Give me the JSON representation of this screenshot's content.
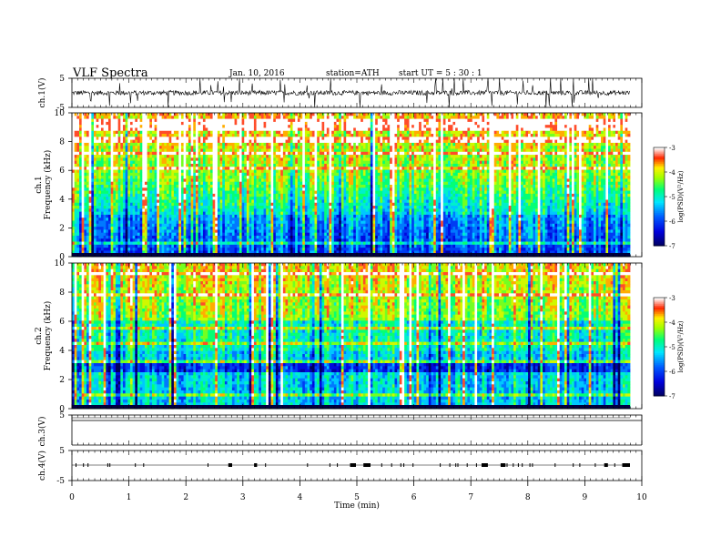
{
  "header": {
    "title": "VLF Spectra",
    "date": "Jan. 10, 2016",
    "station": "station=ATH",
    "start": "start  UT =   5 : 30 : 1"
  },
  "chart_data": [
    {
      "type": "line",
      "panel": "ch1-waveform",
      "ylabel": "ch.1(V)",
      "ylim": [
        -5,
        5
      ],
      "yticks": [
        "5",
        "-5"
      ],
      "xlim": [
        0,
        10
      ],
      "baseline": 0.0,
      "note": "dense noisy waveform with frequent spikes"
    },
    {
      "type": "heatmap",
      "panel": "ch1-spectrogram",
      "ylabel": "ch.1\nFrequency (kHz)",
      "ylim": [
        0,
        10
      ],
      "yticks": [
        "0",
        "2",
        "4",
        "6",
        "8",
        "10"
      ],
      "xlim": [
        0,
        9.8
      ],
      "colorbar": {
        "label": "log(PSD)(V²/Hz)",
        "range": [
          -7,
          -3
        ],
        "ticks": [
          "-3",
          "-4",
          "-5",
          "-6",
          "-7"
        ]
      }
    },
    {
      "type": "heatmap",
      "panel": "ch2-spectrogram",
      "ylabel": "ch.2\nFrequency (kHz)",
      "ylim": [
        0,
        10
      ],
      "yticks": [
        "0",
        "2",
        "4",
        "6",
        "8",
        "10"
      ],
      "xlim": [
        0,
        9.8
      ],
      "colorbar": {
        "label": "log(PSD)(V²/Hz)",
        "range": [
          -7,
          -3
        ],
        "ticks": [
          "-3",
          "-4",
          "-5",
          "-6",
          "-7"
        ]
      }
    },
    {
      "type": "line",
      "panel": "ch3-waveform",
      "ylabel": "ch.3(V)",
      "ylim": [
        -5,
        5
      ],
      "yticks": [
        "5"
      ],
      "xlim": [
        0,
        10
      ],
      "baseline": 0.0
    },
    {
      "type": "line",
      "panel": "ch4-waveform",
      "ylabel": "ch.4(V)",
      "ylim": [
        -5,
        5
      ],
      "yticks": [
        "5",
        "-5"
      ],
      "xlim": [
        0,
        10
      ],
      "baseline": 0.0,
      "note": "sparse rectangular pulses"
    }
  ],
  "xaxis": {
    "label": "Time  (min)",
    "ticks": [
      "0",
      "1",
      "2",
      "3",
      "4",
      "5",
      "6",
      "7",
      "8",
      "9",
      "10"
    ],
    "range": [
      0,
      10
    ]
  },
  "colors": {
    "colormap": [
      "#000064",
      "#0000ff",
      "#00ffff",
      "#00ff00",
      "#ffff00",
      "#ff0000",
      "#ffffff"
    ]
  }
}
